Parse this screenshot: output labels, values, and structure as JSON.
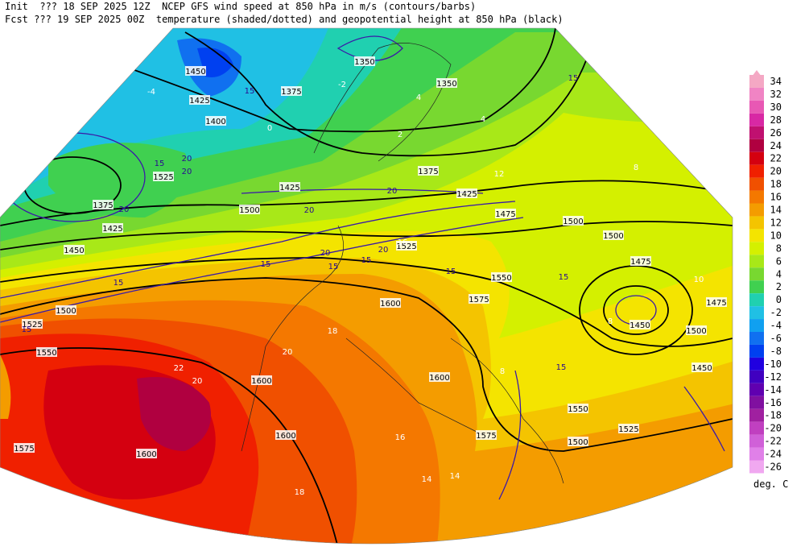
{
  "header": {
    "init_line": "Init  ??? 18 SEP 2025 12Z  NCEP GFS wind speed at 850 hPa in m/s (contours/barbs)",
    "fcst_line": "Fcst ??? 19 SEP 2025 00Z  temperature (shaded/dotted) and geopotential height at 850 hPa (black)"
  },
  "legend": {
    "unit": "deg. C",
    "levels": [
      {
        "label": "34",
        "color": "#f4a8c4"
      },
      {
        "label": "32",
        "color": "#f084c4"
      },
      {
        "label": "30",
        "color": "#e858b4"
      },
      {
        "label": "28",
        "color": "#d828a4"
      },
      {
        "label": "26",
        "color": "#c01070"
      },
      {
        "label": "24",
        "color": "#b00040"
      },
      {
        "label": "22",
        "color": "#d40010"
      },
      {
        "label": "20",
        "color": "#f02000"
      },
      {
        "label": "18",
        "color": "#f05000"
      },
      {
        "label": "16",
        "color": "#f47800"
      },
      {
        "label": "14",
        "color": "#f49c00"
      },
      {
        "label": "12",
        "color": "#f4c400"
      },
      {
        "label": "10",
        "color": "#f4e400"
      },
      {
        "label": "8",
        "color": "#d4f000"
      },
      {
        "label": "6",
        "color": "#a8e818"
      },
      {
        "label": "4",
        "color": "#78d830"
      },
      {
        "label": "2",
        "color": "#40d050"
      },
      {
        "label": "0",
        "color": "#20d0b0"
      },
      {
        "label": "-2",
        "color": "#20c0e4"
      },
      {
        "label": "-4",
        "color": "#10a0f0"
      },
      {
        "label": "-6",
        "color": "#1070f0"
      },
      {
        "label": "-8",
        "color": "#0040f0"
      },
      {
        "label": "-10",
        "color": "#2000e0"
      },
      {
        "label": "-12",
        "color": "#4000c0"
      },
      {
        "label": "-14",
        "color": "#6000b0"
      },
      {
        "label": "-16",
        "color": "#8010a0"
      },
      {
        "label": "-18",
        "color": "#a020a0"
      },
      {
        "label": "-20",
        "color": "#c040c0"
      },
      {
        "label": "-22",
        "color": "#d060d8"
      },
      {
        "label": "-24",
        "color": "#e080e8"
      },
      {
        "label": "-26",
        "color": "#f0a8f0"
      }
    ]
  },
  "map": {
    "height_labels": [
      "1450",
      "1425",
      "1400",
      "1375",
      "1350",
      "1350",
      "1375",
      "1425",
      "1475",
      "1500",
      "1500",
      "1475",
      "1450",
      "1500",
      "1475",
      "1450",
      "1525",
      "1375",
      "1425",
      "1450",
      "1500",
      "1525",
      "1550",
      "1575",
      "1600",
      "1600",
      "1600",
      "1600",
      "1600",
      "1575",
      "1550",
      "1525",
      "1575",
      "1550",
      "1525",
      "1500",
      "1425",
      "1500"
    ],
    "wind_labels": [
      "15",
      "20",
      "20",
      "15",
      "20",
      "20",
      "20",
      "15",
      "15",
      "15",
      "20",
      "15",
      "15",
      "15",
      "15",
      "20",
      "15",
      "15"
    ],
    "temperature_labels": [
      "-4",
      "-2",
      "0",
      "2",
      "4",
      "4",
      "8",
      "8",
      "10",
      "12",
      "16",
      "18",
      "20",
      "20",
      "22",
      "18",
      "14",
      "14",
      "16",
      "8"
    ]
  }
}
